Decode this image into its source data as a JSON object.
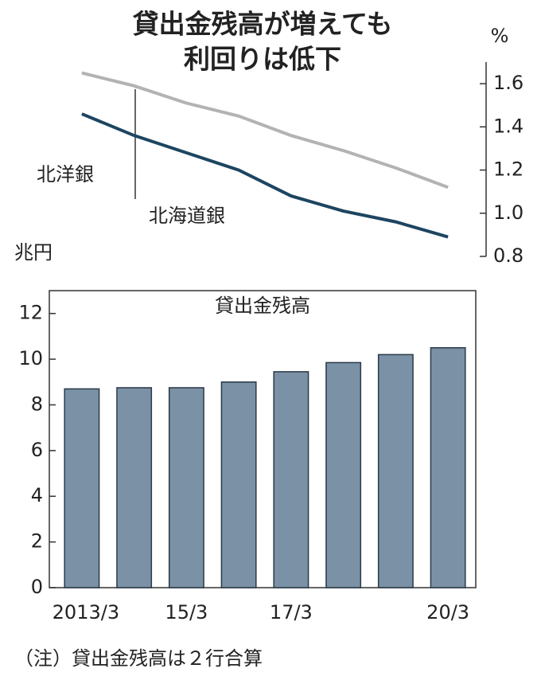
{
  "chart_data": [
    {
      "type": "line",
      "title": [
        "貸出金残高が増えても",
        "利回りは低下"
      ],
      "unit": "%",
      "ylim": [
        0.8,
        1.7
      ],
      "yticks": [
        0.8,
        {
          "value": 1,
          "label": "1.0"
        },
        1.2,
        1.4,
        1.6
      ],
      "series": [
        {
          "name": "北洋銀",
          "color": "#1d4561",
          "values": [
            1.46,
            1.36,
            1.28,
            1.2,
            1.08,
            1.01,
            0.96,
            0.89
          ]
        },
        {
          "name": "北海道銀",
          "color": "#b3b3b5",
          "values": [
            1.65,
            1.59,
            1.51,
            1.45,
            1.36,
            1.29,
            1.21,
            1.12
          ]
        }
      ]
    },
    {
      "type": "bar",
      "title": "貸出金残高",
      "unit": "兆円",
      "categories": [
        "2013/3",
        null,
        "15/3",
        null,
        "17/3",
        null,
        null,
        "20/3"
      ],
      "values": [
        8.7,
        8.75,
        8.75,
        9.0,
        9.45,
        9.85,
        10.2,
        10.5
      ],
      "color": "#7b92a6",
      "ylim": [
        0,
        13
      ],
      "yticks": [
        0,
        2,
        4,
        6,
        8,
        10,
        12
      ]
    }
  ],
  "note": "（注）貸出金残高は２行合算"
}
